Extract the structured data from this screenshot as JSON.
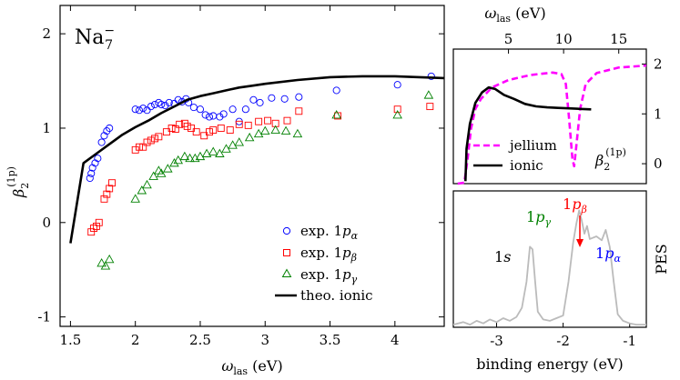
{
  "chart_data": [
    {
      "type": "scatter",
      "id": "main",
      "xlim": [
        1.42,
        4.38
      ],
      "ylim": [
        -1.1,
        2.3
      ],
      "xticks": [
        1.5,
        2,
        2.5,
        3,
        3.5,
        4
      ],
      "yticks": [
        -1,
        0,
        1,
        2
      ],
      "xlabel_main": "ω",
      "xlabel_sub": "las",
      "xlabel_unit": " (eV)",
      "ylabel_main": "β",
      "ylabel_sub": "2",
      "ylabel_sup": "(1p)",
      "species_main": "Na",
      "species_sub": "7",
      "species_sup": "−",
      "legend_position": "bottom-right",
      "legend": [
        {
          "prefix": "exp. 1",
          "p": "p",
          "sub": "α"
        },
        {
          "prefix": "exp. 1",
          "p": "p",
          "sub": "β"
        },
        {
          "prefix": "exp. 1",
          "p": "p",
          "sub": "γ"
        },
        {
          "prefix": "theo. ionic",
          "p": "",
          "sub": ""
        }
      ],
      "series": [
        {
          "marker": "circle",
          "color": "#0000ff",
          "points": [
            [
              1.65,
              0.47
            ],
            [
              1.66,
              0.52
            ],
            [
              1.67,
              0.58
            ],
            [
              1.69,
              0.63
            ],
            [
              1.71,
              0.68
            ],
            [
              1.74,
              0.85
            ],
            [
              1.76,
              0.92
            ],
            [
              1.78,
              0.97
            ],
            [
              1.8,
              1.0
            ],
            [
              2.0,
              1.2
            ],
            [
              2.03,
              1.19
            ],
            [
              2.06,
              1.21
            ],
            [
              2.09,
              1.19
            ],
            [
              2.12,
              1.23
            ],
            [
              2.15,
              1.25
            ],
            [
              2.18,
              1.27
            ],
            [
              2.2,
              1.25
            ],
            [
              2.23,
              1.24
            ],
            [
              2.26,
              1.27
            ],
            [
              2.3,
              1.26
            ],
            [
              2.33,
              1.3
            ],
            [
              2.36,
              1.28
            ],
            [
              2.39,
              1.31
            ],
            [
              2.41,
              1.27
            ],
            [
              2.45,
              1.22
            ],
            [
              2.5,
              1.2
            ],
            [
              2.54,
              1.14
            ],
            [
              2.57,
              1.12
            ],
            [
              2.6,
              1.13
            ],
            [
              2.65,
              1.12
            ],
            [
              2.68,
              1.15
            ],
            [
              2.75,
              1.2
            ],
            [
              2.8,
              1.07
            ],
            [
              2.85,
              1.2
            ],
            [
              2.91,
              1.3
            ],
            [
              2.96,
              1.27
            ],
            [
              3.05,
              1.32
            ],
            [
              3.15,
              1.31
            ],
            [
              3.26,
              1.33
            ],
            [
              3.55,
              1.4
            ],
            [
              4.02,
              1.46
            ],
            [
              4.28,
              1.55
            ]
          ]
        },
        {
          "marker": "square",
          "color": "#ff0000",
          "points": [
            [
              1.66,
              -0.1
            ],
            [
              1.68,
              -0.06
            ],
            [
              1.7,
              -0.04
            ],
            [
              1.72,
              0.0
            ],
            [
              1.76,
              0.25
            ],
            [
              1.78,
              0.3
            ],
            [
              1.8,
              0.36
            ],
            [
              1.82,
              0.42
            ],
            [
              2.0,
              0.77
            ],
            [
              2.03,
              0.8
            ],
            [
              2.06,
              0.8
            ],
            [
              2.09,
              0.85
            ],
            [
              2.12,
              0.87
            ],
            [
              2.15,
              0.89
            ],
            [
              2.18,
              0.91
            ],
            [
              2.24,
              0.96
            ],
            [
              2.28,
              1.0
            ],
            [
              2.31,
              0.99
            ],
            [
              2.34,
              1.04
            ],
            [
              2.38,
              1.05
            ],
            [
              2.4,
              1.02
            ],
            [
              2.43,
              1.0
            ],
            [
              2.47,
              0.96
            ],
            [
              2.53,
              0.92
            ],
            [
              2.57,
              0.96
            ],
            [
              2.6,
              0.98
            ],
            [
              2.66,
              1.0
            ],
            [
              2.73,
              0.98
            ],
            [
              2.8,
              1.04
            ],
            [
              2.87,
              1.03
            ],
            [
              2.95,
              1.07
            ],
            [
              3.02,
              1.08
            ],
            [
              3.08,
              1.05
            ],
            [
              3.17,
              1.08
            ],
            [
              3.26,
              1.18
            ],
            [
              3.56,
              1.13
            ],
            [
              4.02,
              1.2
            ],
            [
              4.27,
              1.23
            ]
          ]
        },
        {
          "marker": "triangle",
          "color": "#008000",
          "points": [
            [
              1.74,
              -0.43
            ],
            [
              1.77,
              -0.46
            ],
            [
              1.8,
              -0.39
            ],
            [
              2.0,
              0.25
            ],
            [
              2.05,
              0.34
            ],
            [
              2.09,
              0.4
            ],
            [
              2.14,
              0.49
            ],
            [
              2.18,
              0.55
            ],
            [
              2.2,
              0.52
            ],
            [
              2.25,
              0.57
            ],
            [
              2.3,
              0.63
            ],
            [
              2.33,
              0.66
            ],
            [
              2.38,
              0.7
            ],
            [
              2.42,
              0.68
            ],
            [
              2.46,
              0.68
            ],
            [
              2.5,
              0.7
            ],
            [
              2.55,
              0.73
            ],
            [
              2.6,
              0.75
            ],
            [
              2.65,
              0.73
            ],
            [
              2.7,
              0.78
            ],
            [
              2.75,
              0.82
            ],
            [
              2.8,
              0.85
            ],
            [
              2.88,
              0.9
            ],
            [
              2.95,
              0.94
            ],
            [
              3.0,
              0.97
            ],
            [
              3.08,
              0.98
            ],
            [
              3.16,
              0.97
            ],
            [
              3.25,
              0.94
            ],
            [
              3.55,
              1.14
            ],
            [
              4.02,
              1.14
            ],
            [
              4.26,
              1.35
            ]
          ]
        },
        {
          "marker": "line",
          "color": "#000000",
          "points": [
            [
              1.5,
              -0.22
            ],
            [
              1.6,
              0.63
            ],
            [
              1.7,
              0.73
            ],
            [
              1.8,
              0.83
            ],
            [
              1.9,
              0.93
            ],
            [
              2.0,
              1.01
            ],
            [
              2.1,
              1.08
            ],
            [
              2.2,
              1.16
            ],
            [
              2.3,
              1.23
            ],
            [
              2.4,
              1.3
            ],
            [
              2.5,
              1.34
            ],
            [
              2.6,
              1.37
            ],
            [
              2.7,
              1.4
            ],
            [
              2.8,
              1.43
            ],
            [
              2.9,
              1.45
            ],
            [
              3.0,
              1.47
            ],
            [
              3.25,
              1.51
            ],
            [
              3.5,
              1.54
            ],
            [
              3.75,
              1.55
            ],
            [
              4.0,
              1.55
            ],
            [
              4.38,
              1.53
            ]
          ]
        }
      ]
    },
    {
      "type": "line",
      "id": "top-right",
      "xlim": [
        0,
        17.5
      ],
      "ylim": [
        -0.4,
        2.3
      ],
      "xticks": [
        0,
        5,
        10,
        15
      ],
      "yticks": [
        0,
        1,
        2
      ],
      "xlabel_main": "ω",
      "xlabel_sub": "las",
      "xlabel_unit": " (eV)",
      "ylabel_main": "β",
      "ylabel_sub": "2",
      "ylabel_sup": "(1p)",
      "legend_position": "bottom-left",
      "series": [
        {
          "name": "jellium",
          "color": "#ff00ff",
          "dash": true,
          "points": [
            [
              0.4,
              -0.4
            ],
            [
              1.0,
              -0.38
            ],
            [
              1.3,
              0.1
            ],
            [
              1.6,
              0.7
            ],
            [
              2.0,
              1.1
            ],
            [
              2.5,
              1.3
            ],
            [
              3.5,
              1.53
            ],
            [
              5.0,
              1.68
            ],
            [
              7.0,
              1.78
            ],
            [
              9.0,
              1.83
            ],
            [
              9.8,
              1.8
            ],
            [
              10.2,
              1.6
            ],
            [
              10.5,
              0.9
            ],
            [
              10.8,
              0.1
            ],
            [
              10.95,
              -0.05
            ],
            [
              11.1,
              0.25
            ],
            [
              11.5,
              1.1
            ],
            [
              12.0,
              1.6
            ],
            [
              13.0,
              1.82
            ],
            [
              15.0,
              1.93
            ],
            [
              17.5,
              1.97
            ]
          ]
        },
        {
          "name": "ionic",
          "color": "#000000",
          "dash": false,
          "points": [
            [
              1.1,
              -0.35
            ],
            [
              1.2,
              0.3
            ],
            [
              1.5,
              0.8
            ],
            [
              2.0,
              1.22
            ],
            [
              2.6,
              1.43
            ],
            [
              3.2,
              1.53
            ],
            [
              3.8,
              1.5
            ],
            [
              4.6,
              1.38
            ],
            [
              5.5,
              1.3
            ],
            [
              6.5,
              1.2
            ],
            [
              7.5,
              1.15
            ],
            [
              8.5,
              1.13
            ],
            [
              9.5,
              1.12
            ],
            [
              10.5,
              1.11
            ],
            [
              11.5,
              1.1
            ],
            [
              12.5,
              1.09
            ]
          ]
        }
      ]
    },
    {
      "type": "line",
      "id": "bottom-right",
      "xlim": [
        -3.65,
        -0.75
      ],
      "ylim": [
        0,
        1.05
      ],
      "xticks": [
        -3,
        -2,
        -1
      ],
      "xlabel": "binding energy (eV)",
      "ylabel": "PES",
      "annotations": [
        {
          "main": "1",
          "p": "s",
          "sub": ""
        },
        {
          "main": "1",
          "p": "p",
          "sub": "γ"
        },
        {
          "main": "1",
          "p": "p",
          "sub": "β"
        },
        {
          "main": "1",
          "p": "p",
          "sub": "α"
        }
      ],
      "series": [
        {
          "name": "spectrum",
          "color": "#bbbbbb",
          "points": [
            [
              -3.65,
              0.02
            ],
            [
              -3.5,
              0.04
            ],
            [
              -3.4,
              0.02
            ],
            [
              -3.3,
              0.05
            ],
            [
              -3.2,
              0.03
            ],
            [
              -3.1,
              0.06
            ],
            [
              -3.0,
              0.04
            ],
            [
              -2.9,
              0.07
            ],
            [
              -2.8,
              0.05
            ],
            [
              -2.7,
              0.08
            ],
            [
              -2.62,
              0.15
            ],
            [
              -2.55,
              0.35
            ],
            [
              -2.5,
              0.62
            ],
            [
              -2.46,
              0.6
            ],
            [
              -2.42,
              0.35
            ],
            [
              -2.38,
              0.12
            ],
            [
              -2.3,
              0.06
            ],
            [
              -2.2,
              0.05
            ],
            [
              -2.1,
              0.07
            ],
            [
              -2.0,
              0.09
            ],
            [
              -1.92,
              0.35
            ],
            [
              -1.85,
              0.65
            ],
            [
              -1.8,
              0.8
            ],
            [
              -1.76,
              0.9
            ],
            [
              -1.72,
              0.82
            ],
            [
              -1.68,
              0.72
            ],
            [
              -1.64,
              0.78
            ],
            [
              -1.6,
              0.68
            ],
            [
              -1.5,
              0.7
            ],
            [
              -1.42,
              0.67
            ],
            [
              -1.36,
              0.75
            ],
            [
              -1.3,
              0.62
            ],
            [
              -1.24,
              0.35
            ],
            [
              -1.18,
              0.1
            ],
            [
              -1.1,
              0.05
            ],
            [
              -1.0,
              0.03
            ],
            [
              -0.9,
              0.02
            ],
            [
              -0.75,
              0.02
            ]
          ]
        }
      ]
    }
  ]
}
